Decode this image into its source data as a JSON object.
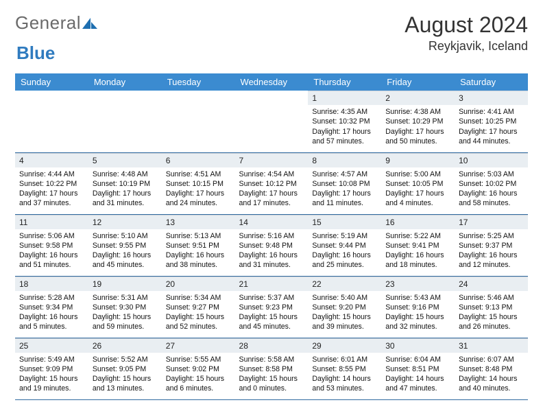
{
  "brand": {
    "part1": "General",
    "part2": "Blue",
    "tri_color": "#1e6fb0"
  },
  "header": {
    "title": "August 2024",
    "subtitle": "Reykjavik, Iceland"
  },
  "theme": {
    "header_bg": "#3b8bd0",
    "header_fg": "#ffffff",
    "daynum_bg": "#e9eef2",
    "row_divider": "#2f6aa0",
    "text": "#111111",
    "page_bg": "#ffffff"
  },
  "weekdays": [
    "Sunday",
    "Monday",
    "Tuesday",
    "Wednesday",
    "Thursday",
    "Friday",
    "Saturday"
  ],
  "weeks": [
    [
      null,
      null,
      null,
      null,
      {
        "n": "1",
        "lines": [
          "Sunrise: 4:35 AM",
          "Sunset: 10:32 PM",
          "Daylight: 17 hours",
          "and 57 minutes."
        ]
      },
      {
        "n": "2",
        "lines": [
          "Sunrise: 4:38 AM",
          "Sunset: 10:29 PM",
          "Daylight: 17 hours",
          "and 50 minutes."
        ]
      },
      {
        "n": "3",
        "lines": [
          "Sunrise: 4:41 AM",
          "Sunset: 10:25 PM",
          "Daylight: 17 hours",
          "and 44 minutes."
        ]
      }
    ],
    [
      {
        "n": "4",
        "lines": [
          "Sunrise: 4:44 AM",
          "Sunset: 10:22 PM",
          "Daylight: 17 hours",
          "and 37 minutes."
        ]
      },
      {
        "n": "5",
        "lines": [
          "Sunrise: 4:48 AM",
          "Sunset: 10:19 PM",
          "Daylight: 17 hours",
          "and 31 minutes."
        ]
      },
      {
        "n": "6",
        "lines": [
          "Sunrise: 4:51 AM",
          "Sunset: 10:15 PM",
          "Daylight: 17 hours",
          "and 24 minutes."
        ]
      },
      {
        "n": "7",
        "lines": [
          "Sunrise: 4:54 AM",
          "Sunset: 10:12 PM",
          "Daylight: 17 hours",
          "and 17 minutes."
        ]
      },
      {
        "n": "8",
        "lines": [
          "Sunrise: 4:57 AM",
          "Sunset: 10:08 PM",
          "Daylight: 17 hours",
          "and 11 minutes."
        ]
      },
      {
        "n": "9",
        "lines": [
          "Sunrise: 5:00 AM",
          "Sunset: 10:05 PM",
          "Daylight: 17 hours",
          "and 4 minutes."
        ]
      },
      {
        "n": "10",
        "lines": [
          "Sunrise: 5:03 AM",
          "Sunset: 10:02 PM",
          "Daylight: 16 hours",
          "and 58 minutes."
        ]
      }
    ],
    [
      {
        "n": "11",
        "lines": [
          "Sunrise: 5:06 AM",
          "Sunset: 9:58 PM",
          "Daylight: 16 hours",
          "and 51 minutes."
        ]
      },
      {
        "n": "12",
        "lines": [
          "Sunrise: 5:10 AM",
          "Sunset: 9:55 PM",
          "Daylight: 16 hours",
          "and 45 minutes."
        ]
      },
      {
        "n": "13",
        "lines": [
          "Sunrise: 5:13 AM",
          "Sunset: 9:51 PM",
          "Daylight: 16 hours",
          "and 38 minutes."
        ]
      },
      {
        "n": "14",
        "lines": [
          "Sunrise: 5:16 AM",
          "Sunset: 9:48 PM",
          "Daylight: 16 hours",
          "and 31 minutes."
        ]
      },
      {
        "n": "15",
        "lines": [
          "Sunrise: 5:19 AM",
          "Sunset: 9:44 PM",
          "Daylight: 16 hours",
          "and 25 minutes."
        ]
      },
      {
        "n": "16",
        "lines": [
          "Sunrise: 5:22 AM",
          "Sunset: 9:41 PM",
          "Daylight: 16 hours",
          "and 18 minutes."
        ]
      },
      {
        "n": "17",
        "lines": [
          "Sunrise: 5:25 AM",
          "Sunset: 9:37 PM",
          "Daylight: 16 hours",
          "and 12 minutes."
        ]
      }
    ],
    [
      {
        "n": "18",
        "lines": [
          "Sunrise: 5:28 AM",
          "Sunset: 9:34 PM",
          "Daylight: 16 hours",
          "and 5 minutes."
        ]
      },
      {
        "n": "19",
        "lines": [
          "Sunrise: 5:31 AM",
          "Sunset: 9:30 PM",
          "Daylight: 15 hours",
          "and 59 minutes."
        ]
      },
      {
        "n": "20",
        "lines": [
          "Sunrise: 5:34 AM",
          "Sunset: 9:27 PM",
          "Daylight: 15 hours",
          "and 52 minutes."
        ]
      },
      {
        "n": "21",
        "lines": [
          "Sunrise: 5:37 AM",
          "Sunset: 9:23 PM",
          "Daylight: 15 hours",
          "and 45 minutes."
        ]
      },
      {
        "n": "22",
        "lines": [
          "Sunrise: 5:40 AM",
          "Sunset: 9:20 PM",
          "Daylight: 15 hours",
          "and 39 minutes."
        ]
      },
      {
        "n": "23",
        "lines": [
          "Sunrise: 5:43 AM",
          "Sunset: 9:16 PM",
          "Daylight: 15 hours",
          "and 32 minutes."
        ]
      },
      {
        "n": "24",
        "lines": [
          "Sunrise: 5:46 AM",
          "Sunset: 9:13 PM",
          "Daylight: 15 hours",
          "and 26 minutes."
        ]
      }
    ],
    [
      {
        "n": "25",
        "lines": [
          "Sunrise: 5:49 AM",
          "Sunset: 9:09 PM",
          "Daylight: 15 hours",
          "and 19 minutes."
        ]
      },
      {
        "n": "26",
        "lines": [
          "Sunrise: 5:52 AM",
          "Sunset: 9:05 PM",
          "Daylight: 15 hours",
          "and 13 minutes."
        ]
      },
      {
        "n": "27",
        "lines": [
          "Sunrise: 5:55 AM",
          "Sunset: 9:02 PM",
          "Daylight: 15 hours",
          "and 6 minutes."
        ]
      },
      {
        "n": "28",
        "lines": [
          "Sunrise: 5:58 AM",
          "Sunset: 8:58 PM",
          "Daylight: 15 hours",
          "and 0 minutes."
        ]
      },
      {
        "n": "29",
        "lines": [
          "Sunrise: 6:01 AM",
          "Sunset: 8:55 PM",
          "Daylight: 14 hours",
          "and 53 minutes."
        ]
      },
      {
        "n": "30",
        "lines": [
          "Sunrise: 6:04 AM",
          "Sunset: 8:51 PM",
          "Daylight: 14 hours",
          "and 47 minutes."
        ]
      },
      {
        "n": "31",
        "lines": [
          "Sunrise: 6:07 AM",
          "Sunset: 8:48 PM",
          "Daylight: 14 hours",
          "and 40 minutes."
        ]
      }
    ]
  ]
}
